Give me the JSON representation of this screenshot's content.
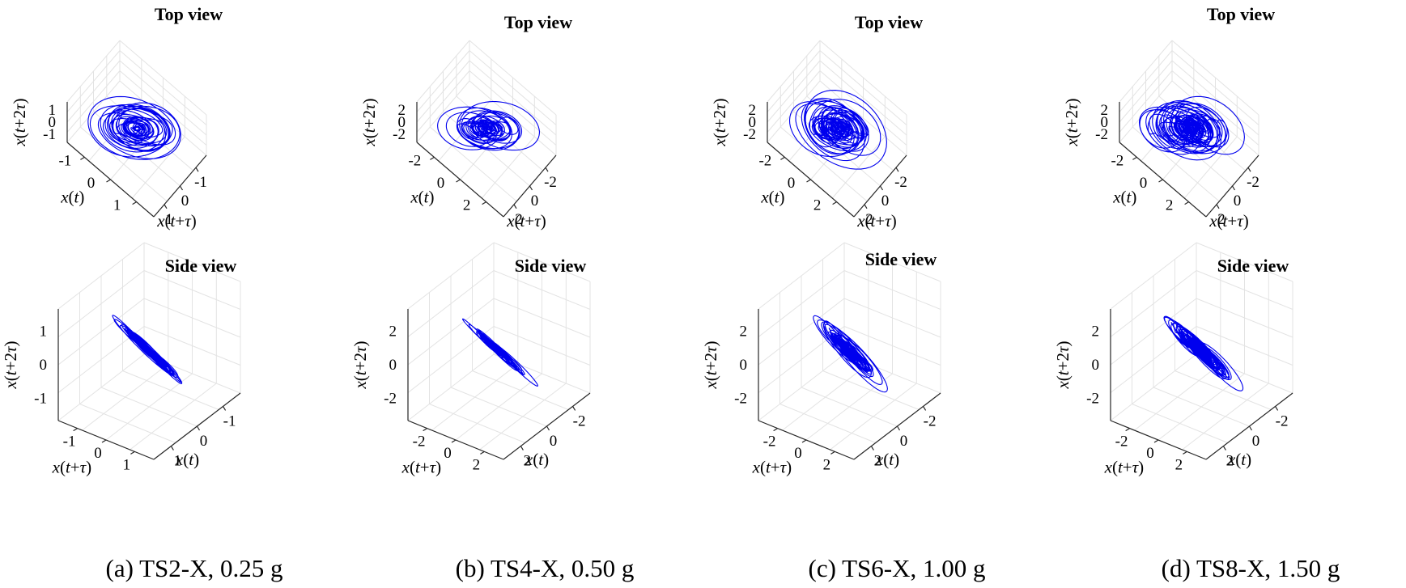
{
  "figure": {
    "captions": [
      "(a) TS2-X, 0.25 g",
      "(b) TS4-X, 0.50 g",
      "(c) TS6-X, 1.00 g",
      "(d) TS8-X, 1.50 g"
    ],
    "view_titles": {
      "top": "Top view",
      "side": "Side view"
    },
    "axis_labels": {
      "x": "x(t)",
      "y": "x(t+τ)",
      "z": "x(t+2τ)"
    }
  },
  "colors": {
    "trajectory": "#0000ee",
    "grid": "#e3e3e3",
    "axis": "#262626"
  },
  "chart_data": [
    {
      "id": "a-top",
      "type": "line",
      "view": "top",
      "title": "Top view",
      "caption": "(a) TS2-X, 0.25 g",
      "x_ticks": [
        "-1",
        "0",
        "1"
      ],
      "y_ticks": [
        "1",
        "0",
        "-1"
      ],
      "z_ticks": [
        "1",
        "0",
        "-1"
      ],
      "xlabel": "x(t)",
      "ylabel": "x(t+τ)",
      "zlabel": "x(t+2τ)",
      "series": [
        {
          "type": "3d-phase-trajectory",
          "amplitude": 1.1
        }
      ]
    },
    {
      "id": "b-top",
      "type": "line",
      "view": "top",
      "title": "Top view",
      "caption": "(b) TS4-X, 0.50 g",
      "x_ticks": [
        "-2",
        "0",
        "2"
      ],
      "y_ticks": [
        "2",
        "0",
        "-2"
      ],
      "z_ticks": [
        "2",
        "0",
        "-2"
      ],
      "xlabel": "x(t)",
      "ylabel": "x(t+τ)",
      "zlabel": "x(t+2τ)",
      "series": [
        {
          "type": "3d-phase-trajectory",
          "amplitude": 2.2
        }
      ]
    },
    {
      "id": "c-top",
      "type": "line",
      "view": "top",
      "title": "Top view",
      "caption": "(c) TS6-X, 1.00 g",
      "x_ticks": [
        "-2",
        "0",
        "2"
      ],
      "y_ticks": [
        "2",
        "0",
        "-2"
      ],
      "z_ticks": [
        "2",
        "0",
        "-2"
      ],
      "xlabel": "x(t)",
      "ylabel": "x(t+τ)",
      "zlabel": "x(t+2τ)",
      "series": [
        {
          "type": "3d-phase-trajectory",
          "amplitude": 2.5
        }
      ]
    },
    {
      "id": "d-top",
      "type": "line",
      "view": "top",
      "title": "Top view",
      "caption": "(d) TS8-X, 1.50 g",
      "x_ticks": [
        "-2",
        "0",
        "2"
      ],
      "y_ticks": [
        "2",
        "0",
        "-2"
      ],
      "z_ticks": [
        "2",
        "0",
        "-2"
      ],
      "xlabel": "x(t)",
      "ylabel": "x(t+τ)",
      "zlabel": "x(t+2τ)",
      "series": [
        {
          "type": "3d-phase-trajectory",
          "amplitude": 2.8
        }
      ]
    },
    {
      "id": "a-side",
      "type": "line",
      "view": "side",
      "title": "Side view",
      "x_ticks": [
        "-1",
        "0",
        "1"
      ],
      "y_ticks": [
        "1",
        "0",
        "-1"
      ],
      "z_ticks": [
        "1",
        "0",
        "-1"
      ],
      "xlabel": "x(t)",
      "ylabel": "x(t+τ)",
      "zlabel": "x(t+2τ)",
      "series": [
        {
          "type": "3d-phase-trajectory",
          "amplitude": 1.1
        }
      ]
    },
    {
      "id": "b-side",
      "type": "line",
      "view": "side",
      "title": "Side view",
      "x_ticks": [
        "-2",
        "0",
        "2"
      ],
      "y_ticks": [
        "2",
        "0",
        "-2"
      ],
      "z_ticks": [
        "2",
        "0",
        "-2"
      ],
      "xlabel": "x(t)",
      "ylabel": "x(t+τ)",
      "zlabel": "x(t+2τ)",
      "series": [
        {
          "type": "3d-phase-trajectory",
          "amplitude": 2.2
        }
      ]
    },
    {
      "id": "c-side",
      "type": "line",
      "view": "side",
      "title": "Side view",
      "x_ticks": [
        "-2",
        "0",
        "2"
      ],
      "y_ticks": [
        "2",
        "0",
        "-2"
      ],
      "z_ticks": [
        "2",
        "0",
        "-2"
      ],
      "xlabel": "x(t)",
      "ylabel": "x(t+τ)",
      "zlabel": "x(t+2τ)",
      "series": [
        {
          "type": "3d-phase-trajectory",
          "amplitude": 2.5
        }
      ]
    },
    {
      "id": "d-side",
      "type": "line",
      "view": "side",
      "title": "Side view",
      "x_ticks": [
        "-2",
        "0",
        "2"
      ],
      "y_ticks": [
        "2",
        "0",
        "-2"
      ],
      "z_ticks": [
        "2",
        "0",
        "-2"
      ],
      "xlabel": "x(t)",
      "ylabel": "x(t+τ)",
      "zlabel": "x(t+2τ)",
      "series": [
        {
          "type": "3d-phase-trajectory",
          "amplitude": 2.8
        }
      ]
    }
  ]
}
